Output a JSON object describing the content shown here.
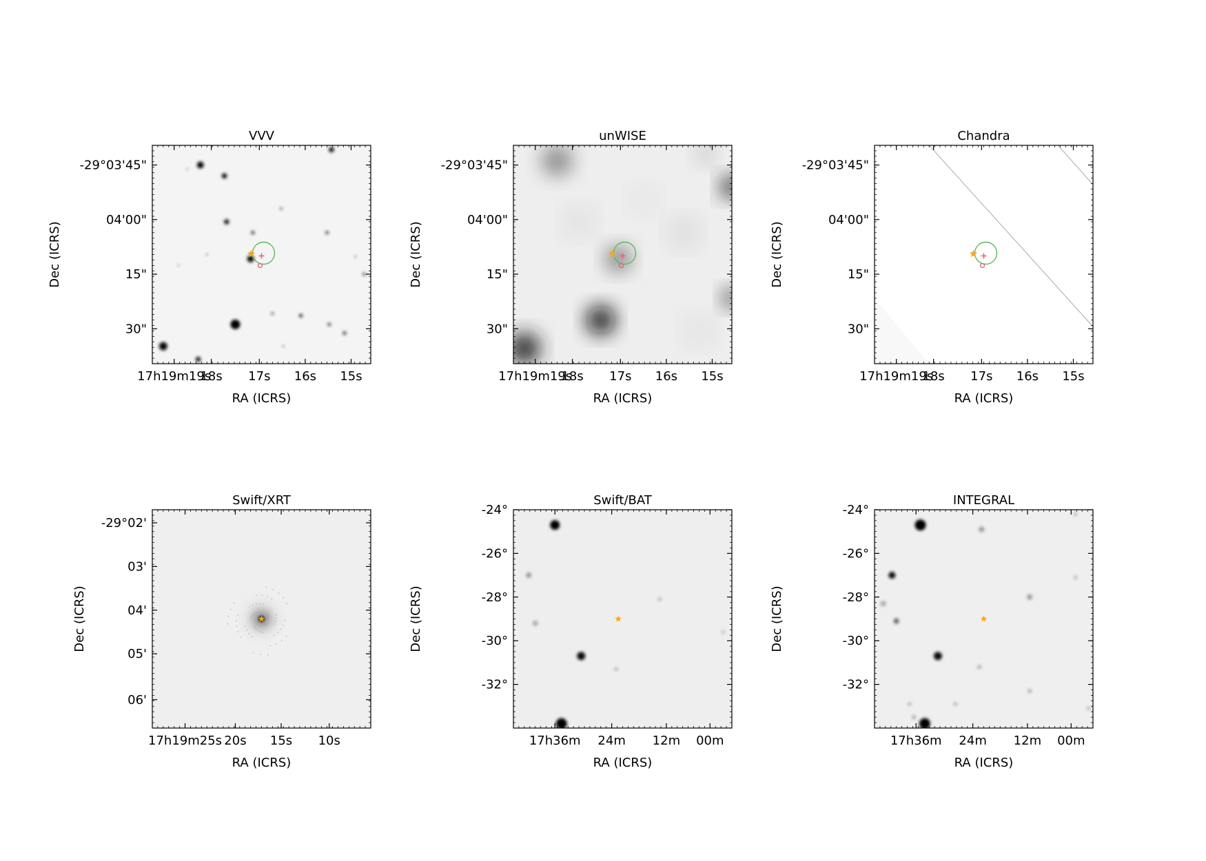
{
  "colors": {
    "marker_star": "#f5a623",
    "circle": "#5cb85c",
    "cross": "#e8606e",
    "frame": "#000000"
  },
  "panels": [
    {
      "title": "VVV",
      "xlabel": "RA (ICRS)",
      "ylabel": "Dec (ICRS)",
      "xticks": [
        "17h19m19s",
        "18s",
        "17s",
        "16s",
        "15s"
      ],
      "yticks": [
        "-29°03'45\"",
        "04'00\"",
        "15\"",
        "30\""
      ],
      "markers": [
        "star",
        "circle",
        "cross",
        "small-circle"
      ]
    },
    {
      "title": "unWISE",
      "xlabel": "RA (ICRS)",
      "ylabel": "Dec (ICRS)",
      "xticks": [
        "17h19m19s",
        "18s",
        "17s",
        "16s",
        "15s"
      ],
      "yticks": [
        "-29°03'45\"",
        "04'00\"",
        "15\"",
        "30\""
      ],
      "markers": [
        "star",
        "circle",
        "cross",
        "small-circle"
      ]
    },
    {
      "title": "Chandra",
      "xlabel": "RA (ICRS)",
      "ylabel": "Dec (ICRS)",
      "xticks": [
        "17h19m19s",
        "18s",
        "17s",
        "16s",
        "15s"
      ],
      "yticks": [
        "-29°03'45\"",
        "04'00\"",
        "15\"",
        "30\""
      ],
      "markers": [
        "star",
        "circle",
        "cross",
        "small-circle"
      ]
    },
    {
      "title": "Swift/XRT",
      "xlabel": "RA (ICRS)",
      "ylabel": "Dec (ICRS)",
      "xticks": [
        "17h19m25s",
        "20s",
        "15s",
        "10s"
      ],
      "yticks": [
        "-29°02'",
        "03'",
        "04'",
        "05'",
        "06'"
      ],
      "markers": [
        "star"
      ]
    },
    {
      "title": "Swift/BAT",
      "xlabel": "RA (ICRS)",
      "ylabel": "Dec (ICRS)",
      "xticks": [
        "17h36m",
        "24m",
        "12m",
        "00m"
      ],
      "yticks": [
        "-24°",
        "-26°",
        "-28°",
        "-30°",
        "-32°"
      ],
      "markers": [
        "star"
      ]
    },
    {
      "title": "INTEGRAL",
      "xlabel": "RA (ICRS)",
      "ylabel": "Dec (ICRS)",
      "xticks": [
        "17h36m",
        "24m",
        "12m",
        "00m"
      ],
      "yticks": [
        "-24°",
        "-26°",
        "-28°",
        "-30°",
        "-32°"
      ],
      "markers": [
        "star"
      ]
    }
  ]
}
